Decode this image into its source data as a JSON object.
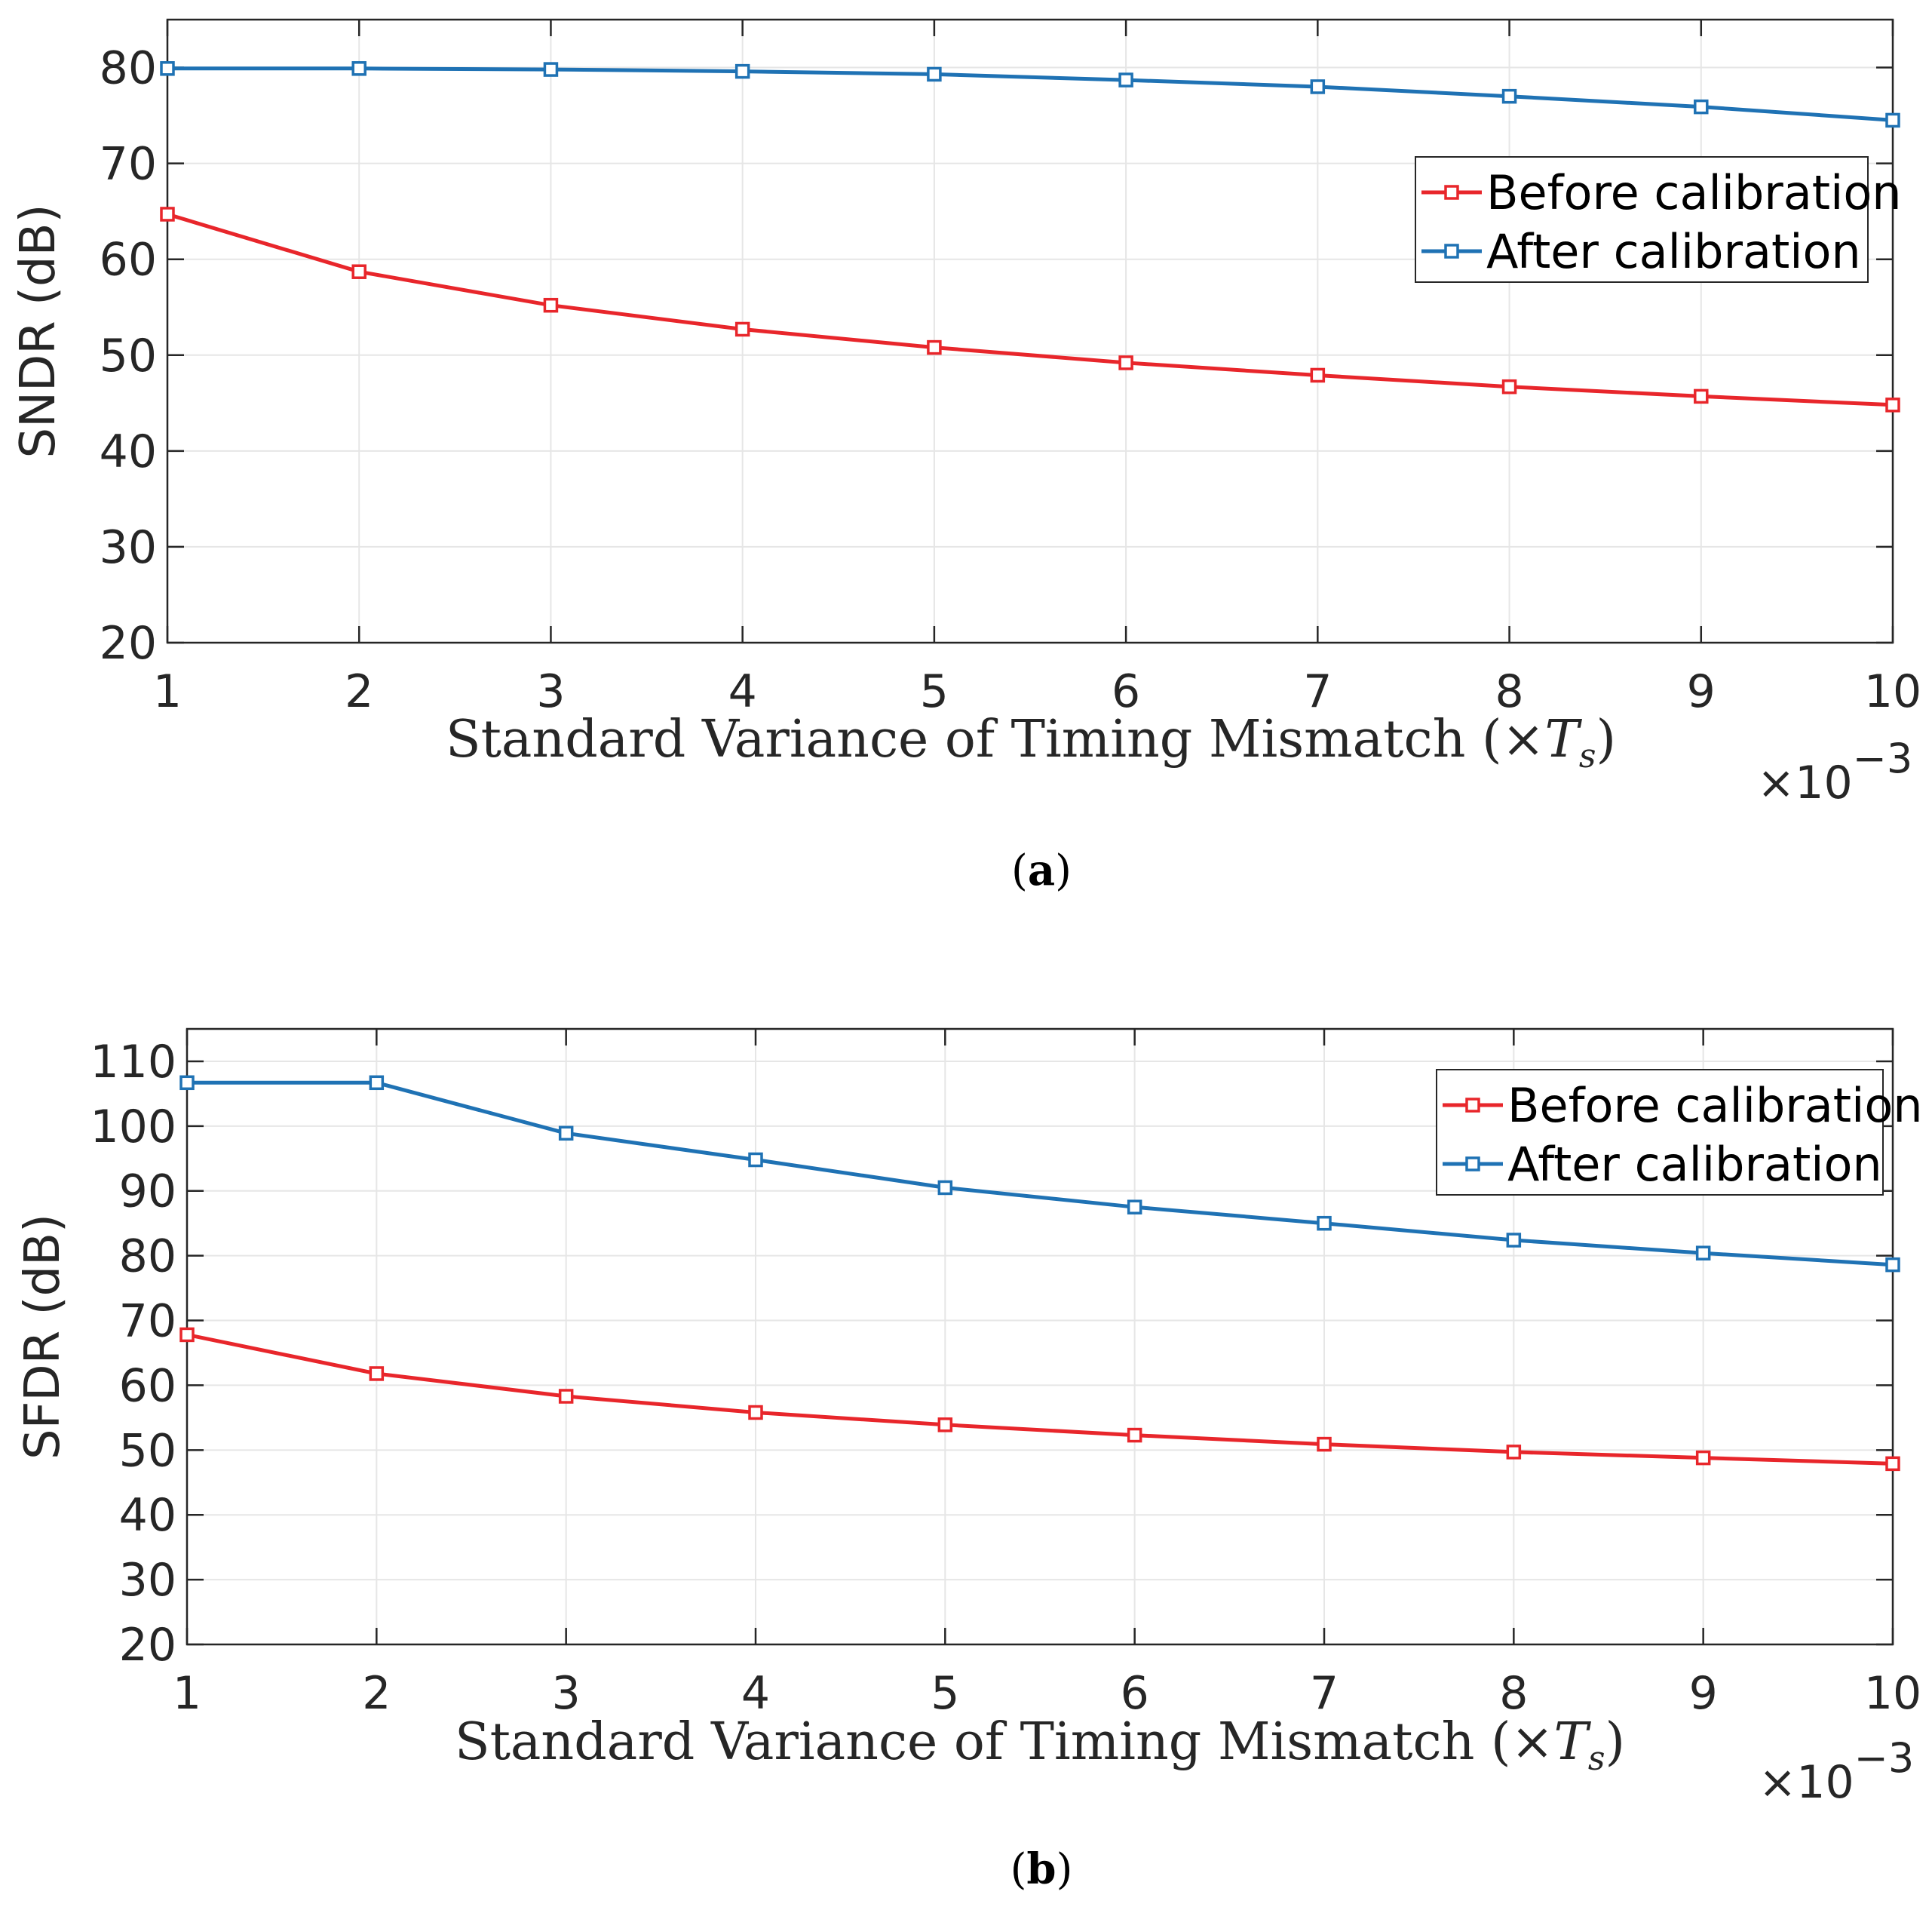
{
  "colors": {
    "before": "#e8262b",
    "after": "#1f72b4",
    "axis": "#262626",
    "grid": "#e6e6e6"
  },
  "chart_data": [
    {
      "type": "line",
      "caption_label": "a",
      "x": [
        1,
        2,
        3,
        4,
        5,
        6,
        7,
        8,
        9,
        10
      ],
      "series": [
        {
          "name": "Before calibration",
          "key": "before",
          "values": [
            64.7,
            58.7,
            55.2,
            52.7,
            50.8,
            49.2,
            47.9,
            46.7,
            45.7,
            44.8
          ]
        },
        {
          "name": "After calibration",
          "key": "after",
          "values": [
            79.9,
            79.9,
            79.8,
            79.6,
            79.3,
            78.7,
            78.0,
            77.0,
            75.9,
            74.5
          ]
        }
      ],
      "xlabel_main": "Standard Variance of Timing Mismatch (×",
      "xlabel_var": "T",
      "xlabel_sub": "s",
      "xlabel_close": ")",
      "x_exponent_base": "×10",
      "x_exponent_power": "−3",
      "ylabel": "SNDR (dB)",
      "xlim": [
        1,
        10
      ],
      "ylim": [
        20,
        85
      ],
      "yticks": [
        20,
        30,
        40,
        50,
        60,
        70,
        80
      ],
      "xticks": [
        1,
        2,
        3,
        4,
        5,
        6,
        7,
        8,
        9,
        10
      ],
      "grid": true,
      "legend_position": "top-right"
    },
    {
      "type": "line",
      "caption_label": "b",
      "x": [
        1,
        2,
        3,
        4,
        5,
        6,
        7,
        8,
        9,
        10
      ],
      "series": [
        {
          "name": "Before calibration",
          "key": "before",
          "values": [
            67.8,
            61.8,
            58.3,
            55.8,
            53.9,
            52.3,
            50.9,
            49.7,
            48.8,
            47.9
          ]
        },
        {
          "name": "After calibration",
          "key": "after",
          "values": [
            106.7,
            106.7,
            98.9,
            94.8,
            90.5,
            87.5,
            85.0,
            82.4,
            80.4,
            78.6
          ]
        }
      ],
      "xlabel_main": "Standard Variance of Timing Mismatch (×",
      "xlabel_var": "T",
      "xlabel_sub": "s",
      "xlabel_close": ")",
      "x_exponent_base": "×10",
      "x_exponent_power": "−3",
      "ylabel": "SFDR (dB)",
      "xlim": [
        1,
        10
      ],
      "ylim": [
        20,
        115
      ],
      "yticks": [
        20,
        30,
        40,
        50,
        60,
        70,
        80,
        90,
        100,
        110
      ],
      "xticks": [
        1,
        2,
        3,
        4,
        5,
        6,
        7,
        8,
        9,
        10
      ],
      "grid": true,
      "legend_position": "top-right"
    }
  ]
}
